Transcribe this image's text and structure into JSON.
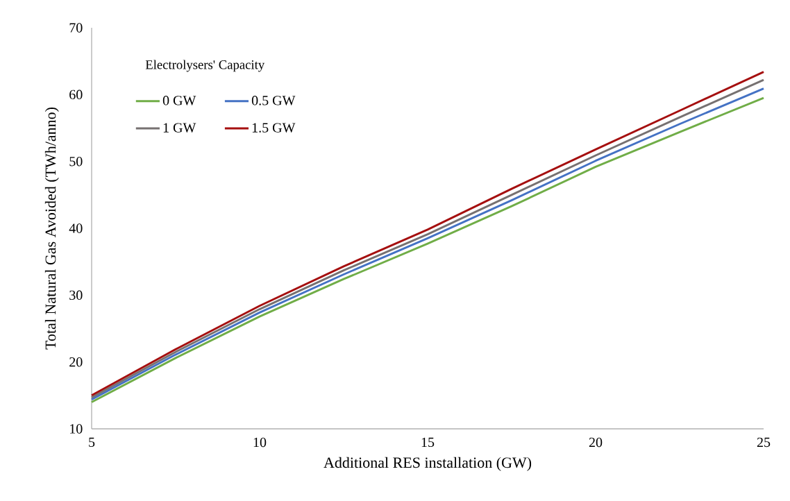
{
  "chart_data": {
    "type": "line",
    "xlabel": "Additional RES installation (GW)",
    "ylabel": "Total Natural Gas Avoided (TWh/anno)",
    "legend_title": "Electrolysers' Capacity",
    "x": [
      5,
      7.5,
      10,
      12.5,
      15,
      17.5,
      20,
      22.5,
      25
    ],
    "series": [
      {
        "name": "0 GW",
        "color": "#70ad47",
        "values": [
          14.0,
          20.6,
          26.8,
          32.4,
          37.7,
          43.3,
          49.2,
          54.4,
          59.5
        ]
      },
      {
        "name": "0.5 GW",
        "color": "#4472c4",
        "values": [
          14.4,
          21.1,
          27.4,
          33.1,
          38.5,
          44.2,
          50.1,
          55.6,
          60.9
        ]
      },
      {
        "name": "1 GW",
        "color": "#767171",
        "values": [
          14.7,
          21.5,
          27.9,
          33.7,
          39.1,
          45.0,
          50.9,
          56.6,
          62.2
        ]
      },
      {
        "name": "1.5 GW",
        "color": "#a50f0f",
        "values": [
          15.0,
          21.9,
          28.4,
          34.3,
          39.8,
          45.9,
          51.8,
          57.6,
          63.4
        ]
      }
    ],
    "xlim": [
      5,
      25
    ],
    "ylim": [
      10,
      70
    ],
    "xticks": [
      5,
      10,
      15,
      20,
      25
    ],
    "yticks": [
      10,
      20,
      30,
      40,
      50,
      60,
      70
    ],
    "grid": false,
    "legend": "top left",
    "marker": "none",
    "line_style": "solid"
  }
}
